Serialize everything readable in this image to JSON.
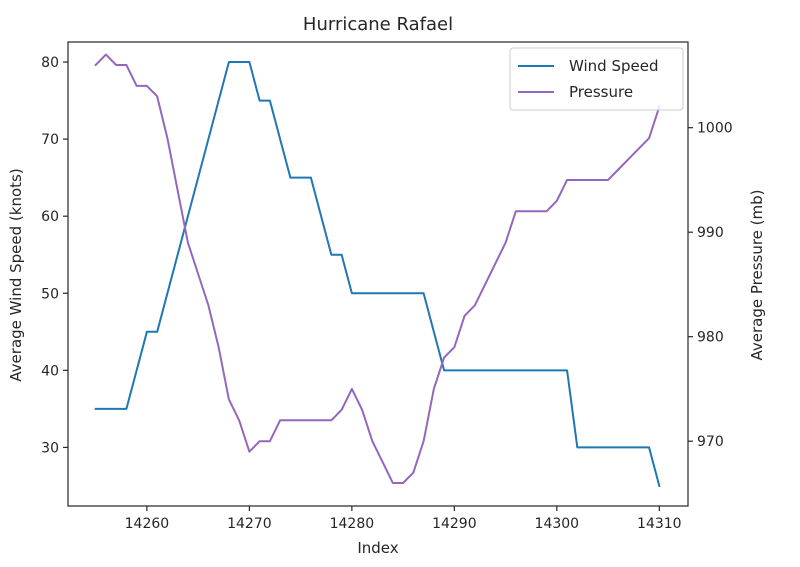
{
  "colors": {
    "wind": "#1f77b4",
    "pressure": "#9467bd",
    "axis": "#262626",
    "legend_border": "#cccccc"
  },
  "chart_data": {
    "type": "line",
    "title": "Hurricane Rafael",
    "xlabel": "Index",
    "ylabel_left": "Average Wind Speed (knots)",
    "ylabel_right": "Average Pressure (mb)",
    "xlim": [
      14252.3,
      14312.8
    ],
    "ylim_left": [
      22.4,
      82.6
    ],
    "ylim_right": [
      963.8,
      1008.2
    ],
    "xticks": [
      14260,
      14270,
      14280,
      14290,
      14300,
      14310
    ],
    "yticks_left": [
      30,
      40,
      50,
      60,
      70,
      80
    ],
    "yticks_right": [
      970,
      980,
      990,
      1000
    ],
    "grid": false,
    "legend_position": "top-right",
    "series": [
      {
        "name": "Wind Speed",
        "axis": "left",
        "x": [
          14255,
          14258,
          14260,
          14261,
          14268,
          14270,
          14271,
          14272,
          14274,
          14276,
          14278,
          14279,
          14280,
          14287,
          14289,
          14301,
          14302,
          14309,
          14310
        ],
        "y": [
          35,
          35,
          45,
          45,
          80,
          80,
          75,
          75,
          65,
          65,
          55,
          55,
          50,
          50,
          40,
          40,
          30,
          30,
          25
        ]
      },
      {
        "name": "Pressure",
        "axis": "right",
        "x": [
          14255,
          14256,
          14257,
          14258,
          14259,
          14260,
          14261,
          14262,
          14263,
          14264,
          14265,
          14266,
          14267,
          14268,
          14269,
          14270,
          14271,
          14272,
          14273,
          14274,
          14275,
          14276,
          14277,
          14278,
          14279,
          14280,
          14281,
          14282,
          14283,
          14284,
          14285,
          14286,
          14287,
          14288,
          14289,
          14290,
          14291,
          14292,
          14293,
          14294,
          14295,
          14296,
          14297,
          14298,
          14299,
          14300,
          14301,
          14302,
          14303,
          14304,
          14305,
          14306,
          14307,
          14308,
          14309,
          14310
        ],
        "y": [
          1006,
          1007,
          1006,
          1006,
          1004,
          1004,
          1003,
          999,
          994,
          989,
          986,
          983,
          979,
          974,
          972,
          969,
          970,
          970,
          972,
          972,
          972,
          972,
          972,
          972,
          973,
          975,
          973,
          970,
          968,
          966,
          966,
          967,
          970,
          975,
          978,
          979,
          982,
          983,
          985,
          987,
          989,
          992,
          992,
          992,
          992,
          993,
          995,
          995,
          995,
          995,
          995,
          996,
          997,
          998,
          999,
          1002
        ]
      }
    ]
  }
}
